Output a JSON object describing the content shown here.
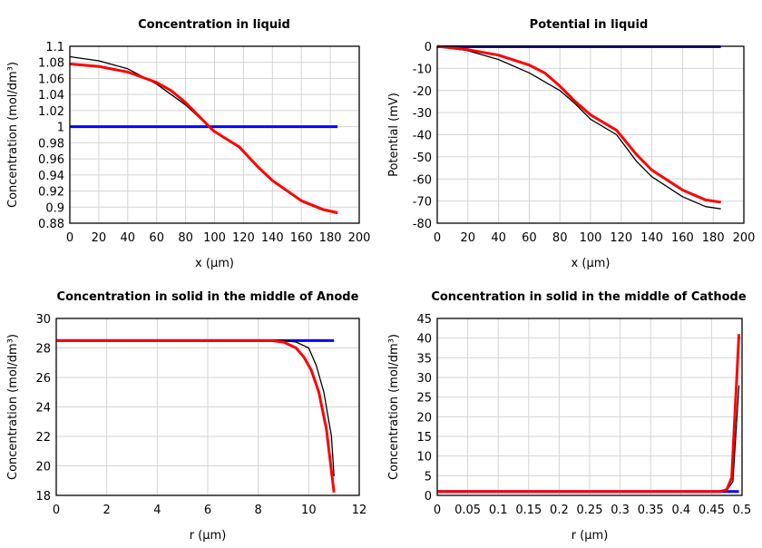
{
  "chart_data": [
    {
      "type": "line",
      "title": "Concentration in liquid",
      "xlabel": "x (µm)",
      "ylabel": "Concentration (mol/dm³)",
      "xlim": [
        0,
        200
      ],
      "ylim": [
        0.88,
        1.1
      ],
      "xticks": [
        "0",
        "20",
        "40",
        "60",
        "80",
        "100",
        "120",
        "140",
        "160",
        "180",
        "200"
      ],
      "yticks": [
        "0.88",
        "0.9",
        "0.92",
        "0.94",
        "0.96",
        "0.98",
        "1",
        "1.02",
        "1.04",
        "1.06",
        "1.08",
        "1.1"
      ],
      "grid": true,
      "series": [
        {
          "color": "#0000ff",
          "x": [
            0,
            100,
            117,
            185
          ],
          "y": [
            1.0,
            1.0,
            1.0,
            1.0
          ]
        },
        {
          "color": "#000000",
          "x": [
            0,
            20,
            40,
            60,
            80,
            98,
            100,
            117,
            130,
            140,
            160,
            175,
            185
          ],
          "y": [
            1.087,
            1.082,
            1.072,
            1.053,
            1.027,
            0.997,
            0.994,
            0.975,
            0.95,
            0.933,
            0.907,
            0.896,
            0.892
          ]
        },
        {
          "color": "#ff0000",
          "x": [
            0,
            20,
            40,
            60,
            70,
            80,
            98,
            100,
            117,
            130,
            140,
            160,
            175,
            185
          ],
          "y": [
            1.078,
            1.075,
            1.068,
            1.055,
            1.045,
            1.03,
            0.997,
            0.994,
            0.975,
            0.95,
            0.933,
            0.908,
            0.897,
            0.893
          ]
        }
      ]
    },
    {
      "type": "line",
      "title": "Potential in liquid",
      "xlabel": "x (µm)",
      "ylabel": "Potential (mV)",
      "xlim": [
        0,
        200
      ],
      "ylim": [
        -80,
        0
      ],
      "xticks": [
        "0",
        "20",
        "40",
        "60",
        "80",
        "100",
        "120",
        "140",
        "160",
        "180",
        "200"
      ],
      "yticks": [
        "-80",
        "-70",
        "-60",
        "-50",
        "-40",
        "-30",
        "-20",
        "-10",
        "0"
      ],
      "grid": true,
      "series": [
        {
          "color": "#0000ff",
          "x": [
            0,
            185
          ],
          "y": [
            -0.2,
            -0.2
          ]
        },
        {
          "color": "#000000",
          "x": [
            0,
            20,
            40,
            60,
            80,
            90,
            100,
            117,
            130,
            140,
            160,
            175,
            185
          ],
          "y": [
            0,
            -2,
            -6,
            -12,
            -20,
            -26,
            -33,
            -40,
            -52,
            -59,
            -68,
            -72.5,
            -73.5
          ]
        },
        {
          "color": "#ff0000",
          "x": [
            0,
            20,
            40,
            60,
            70,
            80,
            90,
            100,
            117,
            130,
            140,
            160,
            175,
            185
          ],
          "y": [
            0,
            -1.5,
            -4,
            -8.5,
            -12,
            -18,
            -25,
            -31,
            -38,
            -49,
            -56,
            -65,
            -69.5,
            -70.5
          ]
        }
      ]
    },
    {
      "type": "line",
      "title": "Concentration in solid in the middle of Anode",
      "xlabel": "r (µm)",
      "ylabel": "Concentration (mol/dm³)",
      "xlim": [
        0,
        12
      ],
      "ylim": [
        18,
        30
      ],
      "xticks": [
        "0",
        "2",
        "4",
        "6",
        "8",
        "10",
        "12"
      ],
      "yticks": [
        "18",
        "20",
        "22",
        "24",
        "26",
        "28",
        "30"
      ],
      "grid": true,
      "series": [
        {
          "color": "#0000ff",
          "x": [
            0,
            11
          ],
          "y": [
            28.5,
            28.5
          ]
        },
        {
          "color": "#000000",
          "x": [
            0,
            9,
            9.5,
            10,
            10.3,
            10.6,
            10.9,
            11
          ],
          "y": [
            28.5,
            28.5,
            28.4,
            28.0,
            26.8,
            25,
            22,
            19.3
          ]
        },
        {
          "color": "#ff0000",
          "x": [
            0,
            8.5,
            9,
            9.5,
            9.8,
            10.1,
            10.4,
            10.7,
            11
          ],
          "y": [
            28.5,
            28.5,
            28.4,
            28.0,
            27.4,
            26.5,
            25,
            22.5,
            18.2
          ]
        }
      ]
    },
    {
      "type": "line",
      "title": "Concentration in solid in the middle of Cathode",
      "xlabel": "r (µm)",
      "ylabel": "Concentration (mol/dm³)",
      "xlim": [
        0,
        0.5
      ],
      "ylim": [
        0,
        45
      ],
      "xticks": [
        "0",
        "0.05",
        "0.1",
        "0.15",
        "0.2",
        "0.25",
        "0.3",
        "0.35",
        "0.4",
        "0.45",
        "0.5"
      ],
      "yticks": [
        "0",
        "5",
        "10",
        "15",
        "20",
        "25",
        "30",
        "35",
        "40",
        "45"
      ],
      "grid": true,
      "series": [
        {
          "color": "#0000ff",
          "x": [
            0,
            0.495
          ],
          "y": [
            1,
            1
          ]
        },
        {
          "color": "#000000",
          "x": [
            0,
            0.465,
            0.475,
            0.485,
            0.495
          ],
          "y": [
            1,
            1,
            1.3,
            3.5,
            28
          ]
        },
        {
          "color": "#ff0000",
          "x": [
            0,
            0.465,
            0.475,
            0.483,
            0.495
          ],
          "y": [
            1,
            1,
            1.5,
            4.5,
            41
          ]
        }
      ]
    }
  ]
}
